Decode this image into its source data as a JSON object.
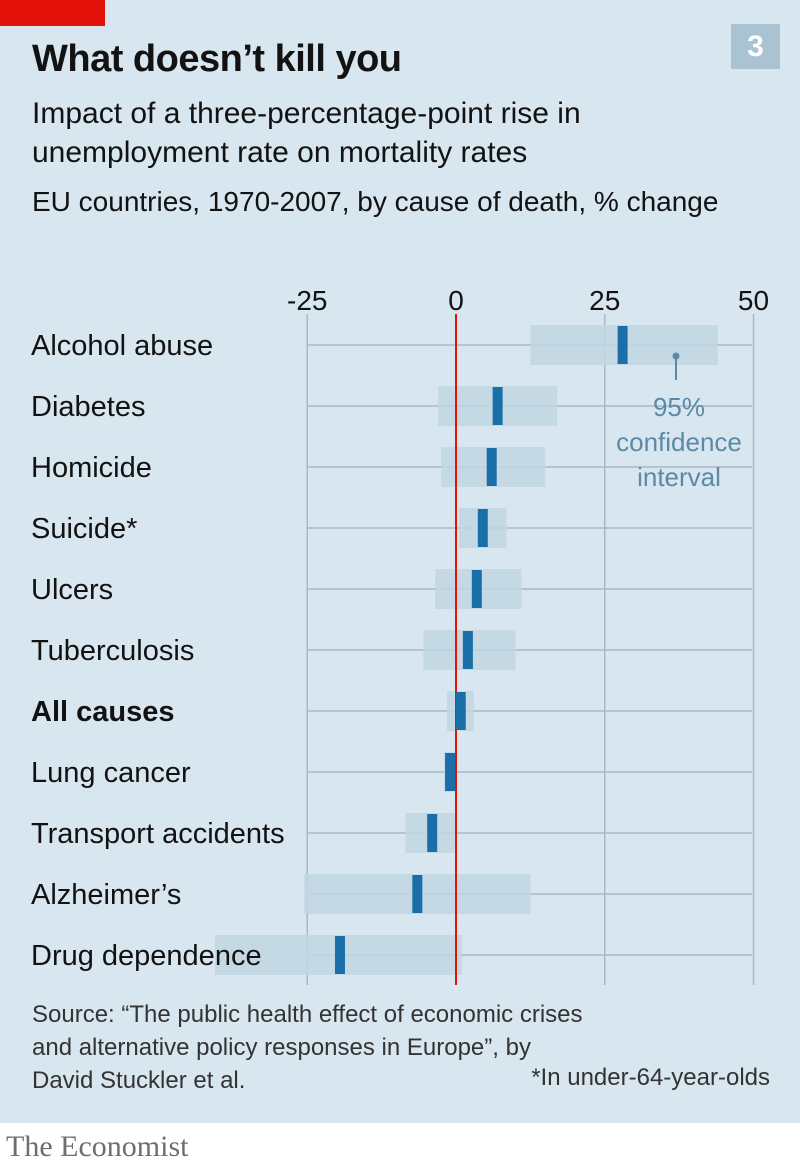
{
  "header": {
    "chart_number": "3",
    "title": "What doesn’t kill you",
    "subtitle": "Impact of a three-percentage-point rise in unemployment rate on mortality rates",
    "description": "EU countries, 1970-2007, by cause of death, % change"
  },
  "chart_data": {
    "type": "dot-interval",
    "x_ticks": [
      -25,
      0,
      25,
      50
    ],
    "xlim": [
      -41,
      52
    ],
    "grid": true,
    "annotation": {
      "lines": [
        "95%",
        "confidence",
        "interval"
      ]
    },
    "rows": [
      {
        "label": "Alcohol abuse",
        "estimate": 28,
        "low": 12.5,
        "high": 44
      },
      {
        "label": "Diabetes",
        "estimate": 7,
        "low": -3,
        "high": 17
      },
      {
        "label": "Homicide",
        "estimate": 6,
        "low": -2.5,
        "high": 15
      },
      {
        "label": "Suicide*",
        "estimate": 4.5,
        "low": 0.5,
        "high": 8.5
      },
      {
        "label": "Ulcers",
        "estimate": 3.5,
        "low": -3.5,
        "high": 11
      },
      {
        "label": "Tuberculosis",
        "estimate": 2,
        "low": -5.5,
        "high": 10
      },
      {
        "label": "All causes",
        "estimate": 0.8,
        "low": -1.5,
        "high": 3,
        "bold": true
      },
      {
        "label": "Lung cancer",
        "estimate": -1,
        "low": -2,
        "high": 0
      },
      {
        "label": "Transport accidents",
        "estimate": -4,
        "low": -8.5,
        "high": 0
      },
      {
        "label": "Alzheimer’s",
        "estimate": -6.5,
        "low": -25.5,
        "high": 12.5
      },
      {
        "label": "Drug dependence",
        "estimate": -19.5,
        "low": -40.5,
        "high": 1
      }
    ]
  },
  "colors": {
    "background": "#d8e6ef",
    "interval": "#c2d6e3",
    "estimate": "#1a6fa8",
    "zero_line": "#e3120b",
    "grid": "#a6bac6",
    "annotation": "#5c8aa6"
  },
  "footer": {
    "source": "Source: “The public health effect of economic crises and alternative policy responses in Europe”, by David Stuckler et al.",
    "footnote": "*In under-64-year-olds",
    "brand": "The Economist"
  }
}
